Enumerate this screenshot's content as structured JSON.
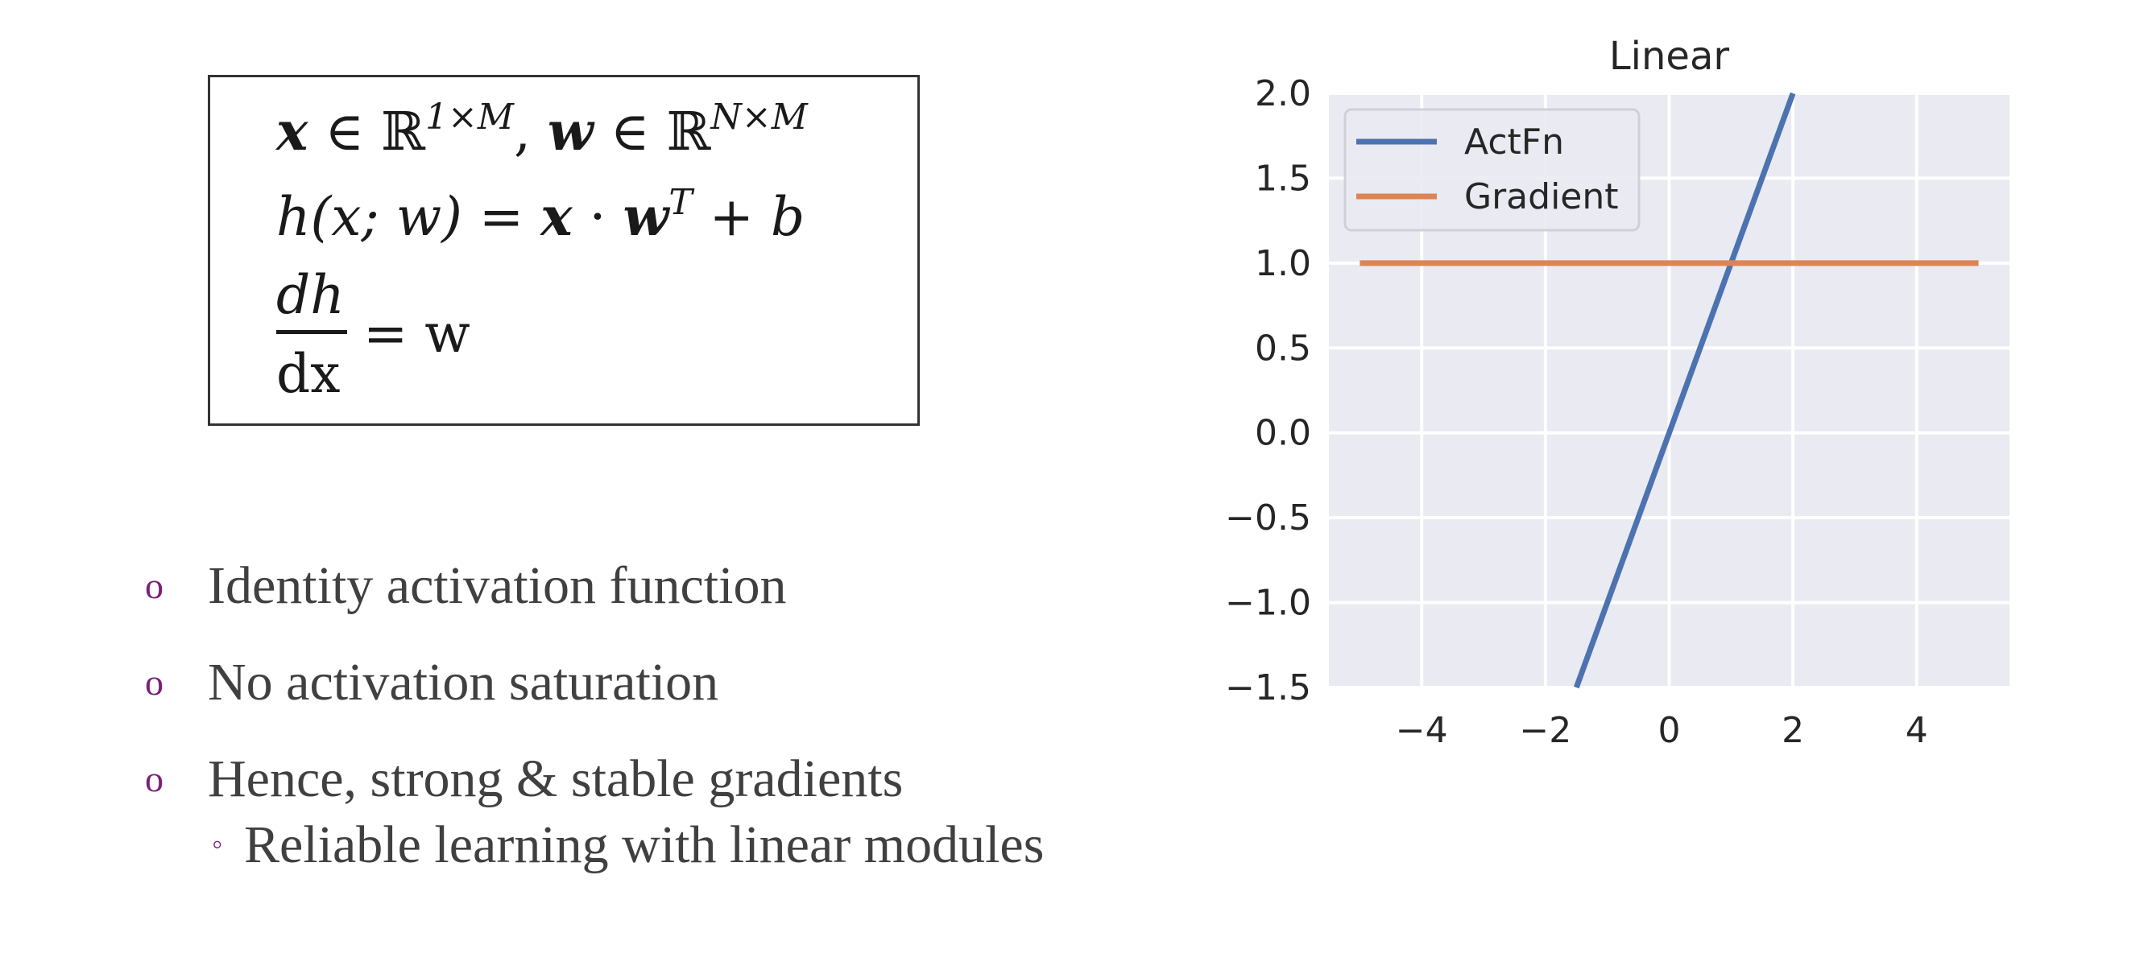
{
  "formula": {
    "line1": {
      "x": "x",
      "in1": " ∈  ℝ",
      "sup1": "1×M",
      "comma": ", ",
      "w": "w",
      "in2": " ∈ ℝ",
      "sup2": "N×M"
    },
    "line2": {
      "lhs": "h(x; w) = ",
      "x": "x",
      "dot": " · ",
      "w": "w",
      "sup": "T",
      "rest": " + b"
    },
    "frac": {
      "numerator": "dh",
      "den_d": "d",
      "den_x": "x",
      "rhs_eq": "= ",
      "rhs_w": "w"
    }
  },
  "bullets": {
    "marker": "o",
    "sub_marker": "◦",
    "items": [
      "Identity activation function",
      "No activation saturation",
      "Hence, strong & stable gradients"
    ],
    "sub_item": "Reliable learning with linear modules"
  },
  "colors": {
    "actfn": "#4c72b0",
    "gradient": "#dd8452",
    "plot_bg": "#eaeaf2",
    "bullet_marker": "#7a1f7a"
  },
  "chart_data": {
    "type": "line",
    "title": "Linear",
    "xlabel": "",
    "ylabel": "",
    "xlim": [
      -5.5,
      5.5
    ],
    "ylim": [
      -1.5,
      2.0
    ],
    "xticks": [
      -4,
      -2,
      0,
      2,
      4
    ],
    "xtick_labels": [
      "−4",
      "−2",
      "0",
      "2",
      "4"
    ],
    "yticks": [
      2.0,
      1.5,
      1.0,
      0.5,
      0.0,
      -0.5,
      -1.0,
      -1.5
    ],
    "ytick_labels": [
      "2.0",
      "1.5",
      "1.0",
      "0.5",
      "0.0",
      "−0.5",
      "−1.0",
      "−1.5"
    ],
    "grid": true,
    "legend": "top-left",
    "series": [
      {
        "name": "ActFn",
        "x": [
          -5,
          5
        ],
        "y": [
          -5,
          5
        ]
      },
      {
        "name": "Gradient",
        "x": [
          -5,
          5
        ],
        "y": [
          1,
          1
        ]
      }
    ]
  }
}
